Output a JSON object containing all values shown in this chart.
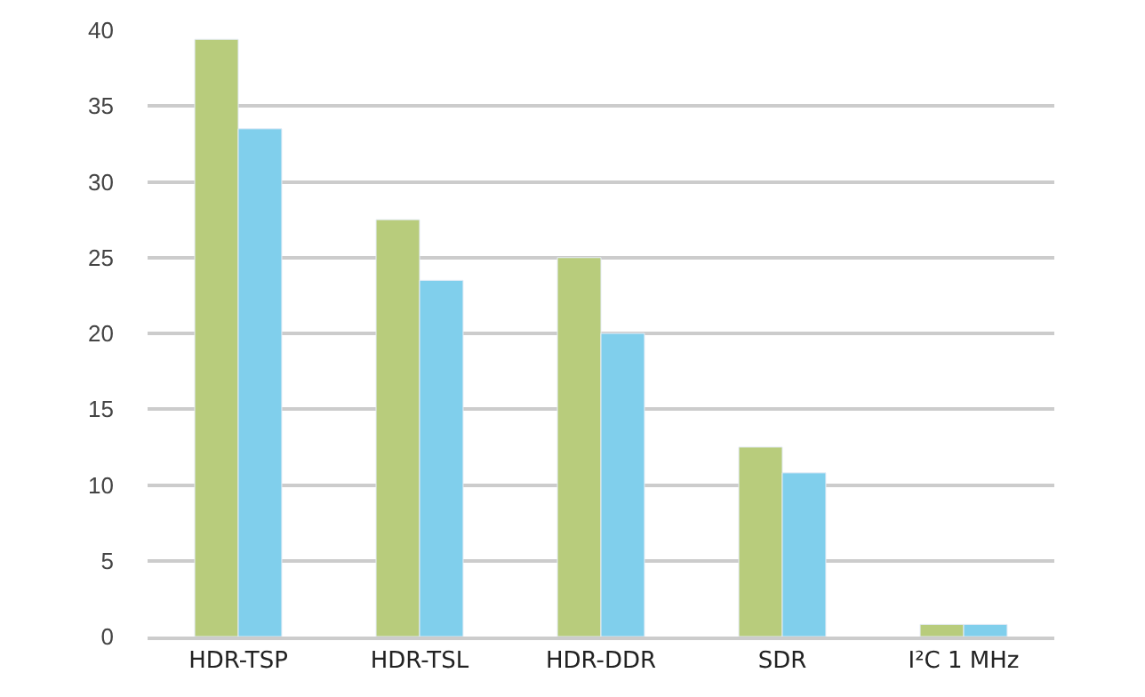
{
  "chart_data": {
    "type": "bar",
    "categories": [
      "HDR-TSP",
      "HDR-TSL",
      "HDR-DDR",
      "SDR",
      "I²C 1 MHz"
    ],
    "series": [
      {
        "color": "#b8cc7c",
        "values": [
          39.4,
          27.5,
          25,
          12.5,
          0.8
        ]
      },
      {
        "color": "#80cfec",
        "values": [
          33.5,
          23.5,
          20,
          10.8,
          0.8
        ]
      }
    ],
    "ylim": [
      0,
      40
    ],
    "yticks": [
      0,
      5,
      10,
      15,
      20,
      25,
      30,
      35,
      40
    ],
    "grid": "y",
    "legend": false
  }
}
